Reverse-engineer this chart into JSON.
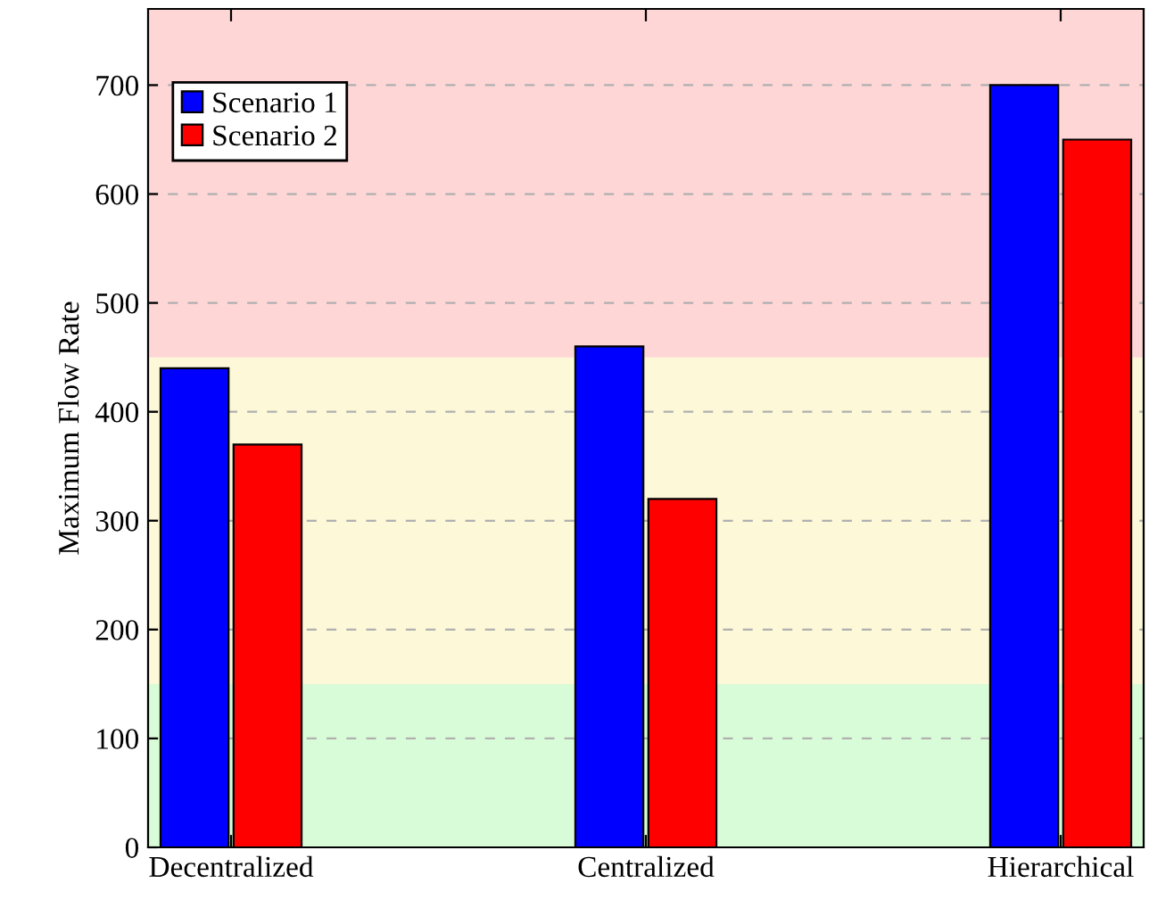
{
  "chart_data": {
    "type": "bar",
    "ylabel": "Maximum Flow Rate",
    "categories": [
      "Decentralized",
      "Centralized",
      "Hierarchical"
    ],
    "series": [
      {
        "name": "Scenario 1",
        "color": "#0000ff",
        "values": [
          440,
          460,
          700
        ]
      },
      {
        "name": "Scenario 2",
        "color": "#ff0000",
        "values": [
          370,
          320,
          650
        ]
      }
    ],
    "ylim": [
      0,
      770
    ],
    "yticks": [
      0,
      100,
      200,
      300,
      400,
      500,
      600,
      700
    ],
    "bands": [
      {
        "axis": "y",
        "from": 0,
        "to": 150,
        "color": "#d8fcd8"
      },
      {
        "axis": "y",
        "from": 150,
        "to": 450,
        "color": "#fdf8d8"
      },
      {
        "axis": "y",
        "from": 450,
        "to": 770,
        "color": "#ffd6d6"
      }
    ],
    "grid": "y",
    "legend": "top left"
  }
}
